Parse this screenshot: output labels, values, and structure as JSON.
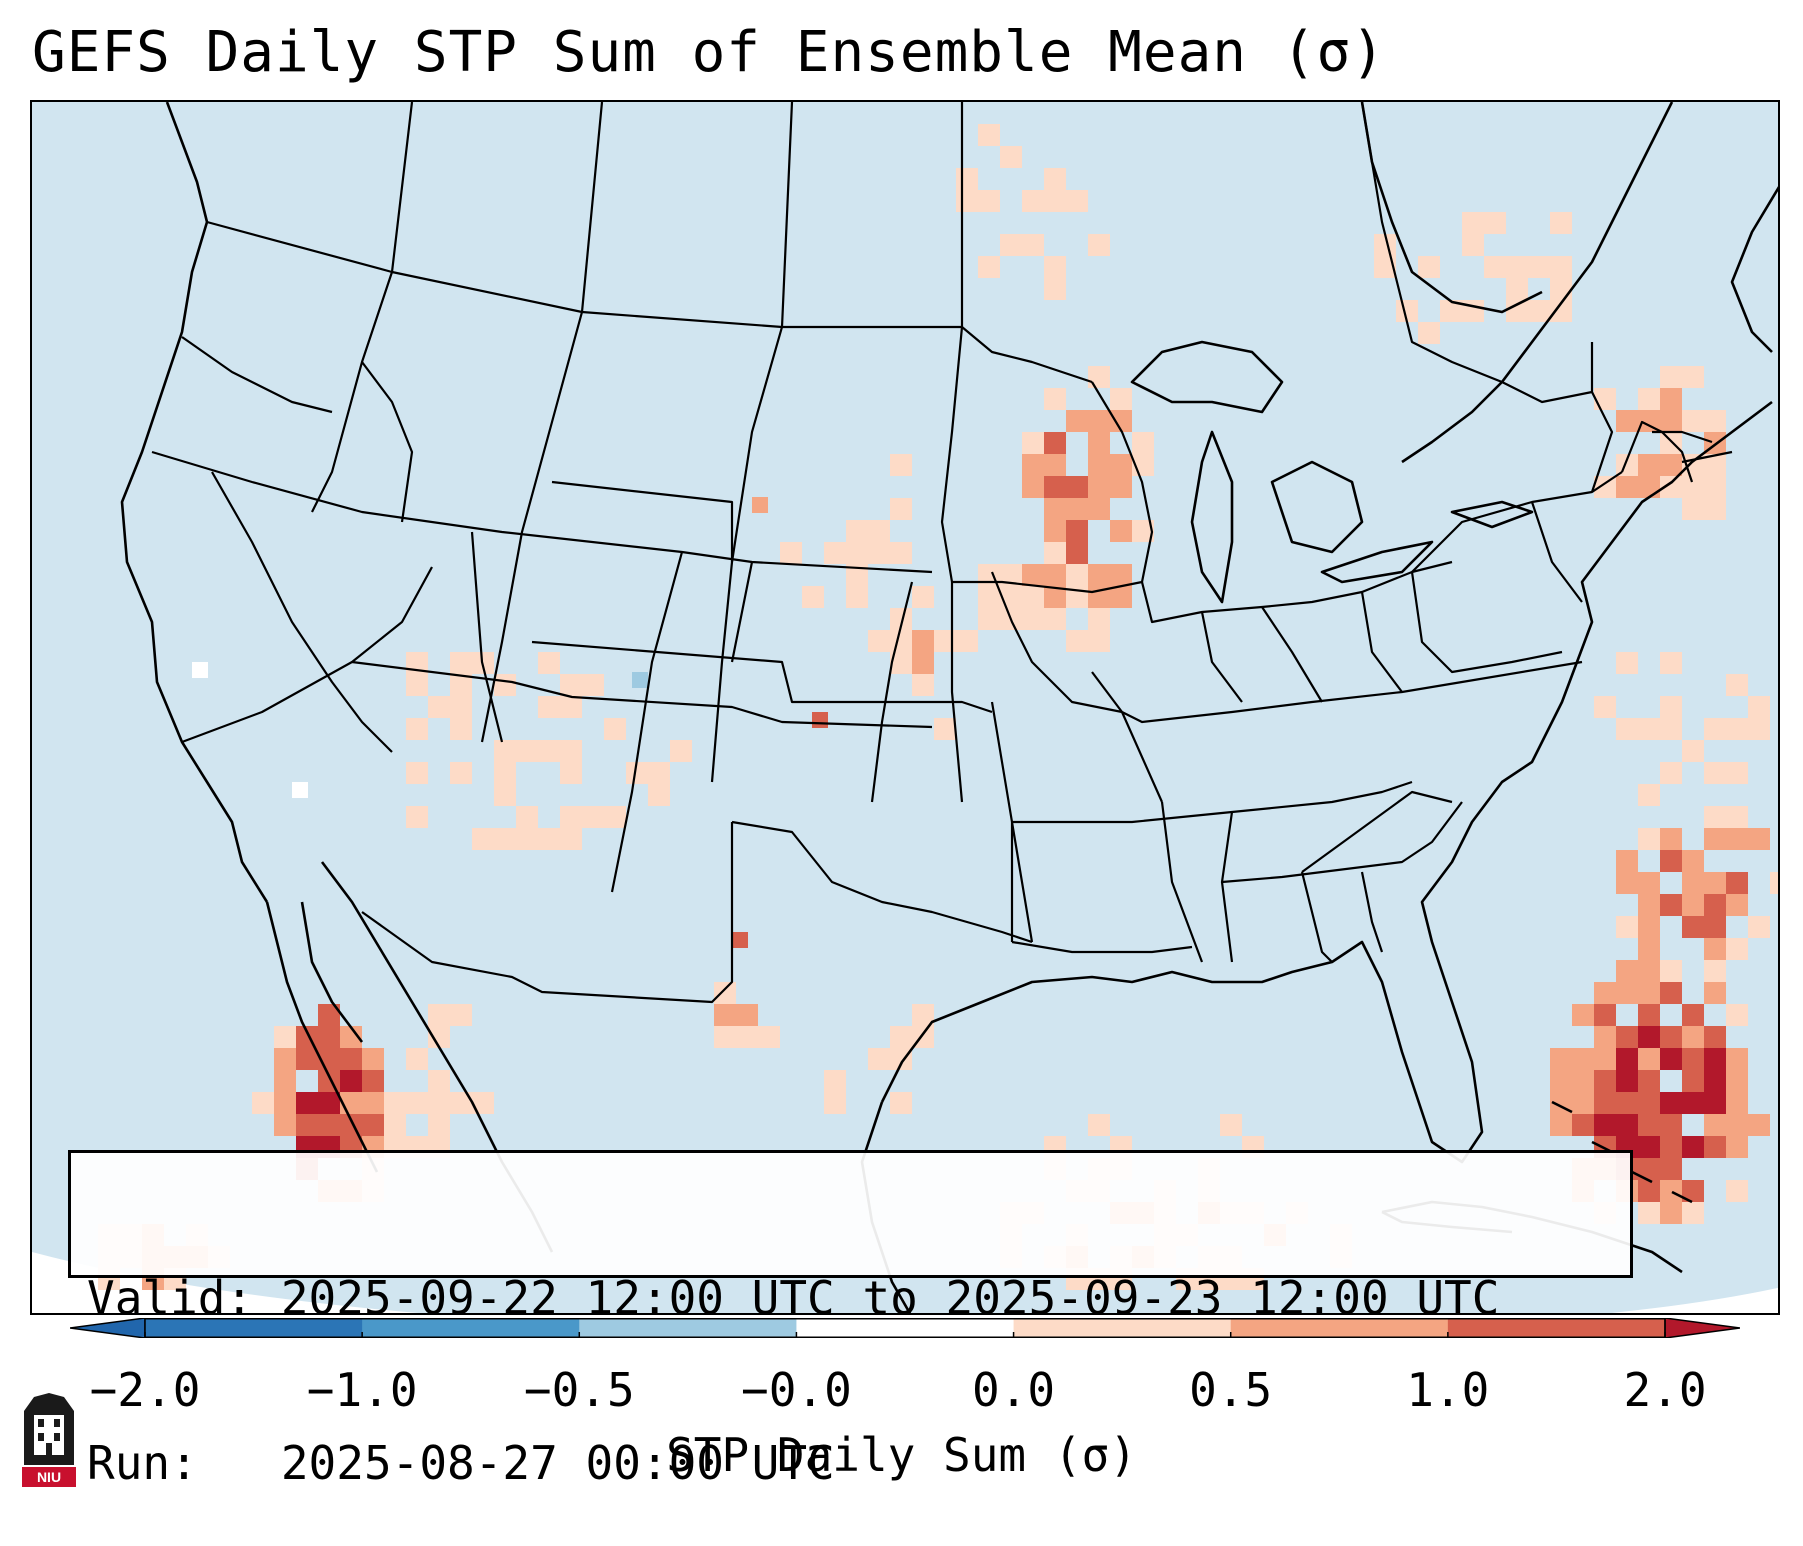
{
  "title": "GEFS Daily STP Sum of Ensemble Mean (σ)",
  "info": {
    "valid_line": "Valid: 2025-09-22 12:00 UTC to 2025-09-23 12:00 UTC",
    "run_line": "Run:   2025-08-27 00:00 UTC"
  },
  "colorbar": {
    "label": "STP Daily Sum (σ)",
    "ticks": [
      "−2.0",
      "−1.0",
      "−0.5",
      "−0.0",
      "0.0",
      "0.5",
      "1.0",
      "2.0"
    ],
    "colors": [
      "#2b75b6",
      "#4a98c9",
      "#9ecae1",
      "#d1e5f0",
      "#ffffff",
      "#fddbc7",
      "#f4a582",
      "#d6604d",
      "#b2182b"
    ],
    "extend_low_color": "#2166ac",
    "extend_high_color": "#b2182b"
  },
  "map": {
    "background_color": "#d1e5f0",
    "region": "Contiguous United States, southern Canada, northern Mexico and Gulf of Mexico",
    "anomaly_areas": [
      {
        "region": "Upper Midwest (Wisconsin / Iowa / Minnesota)",
        "value": 1.0
      },
      {
        "region": "Central Plains (Nebraska / Kansas)",
        "value": 0.5
      },
      {
        "region": "Four Corners / Southwest",
        "value": 0.25
      },
      {
        "region": "Gulf of California / Baja",
        "value": 2.0
      },
      {
        "region": "Western Atlantic east of Florida",
        "value": 2.0
      },
      {
        "region": "Northern Gulf of Mexico",
        "value": 0.5
      },
      {
        "region": "Southeast Canada / Quebec",
        "value": 0.25
      }
    ]
  },
  "logo": {
    "text": "NIU"
  }
}
